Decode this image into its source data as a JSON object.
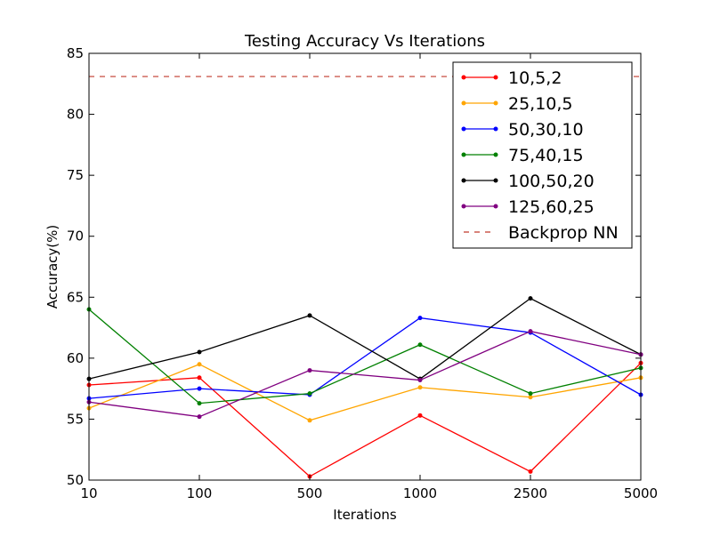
{
  "chart_data": {
    "type": "line",
    "title": "Testing Accuracy Vs Iterations",
    "xlabel": "Iterations",
    "ylabel": "Accuracy(%)",
    "categories": [
      "10",
      "100",
      "500",
      "1000",
      "2500",
      "5000"
    ],
    "ylim": [
      50,
      85
    ],
    "yticks": [
      50,
      55,
      60,
      65,
      70,
      75,
      80,
      85
    ],
    "grid": false,
    "legend_position": "top-right",
    "series": [
      {
        "name": "10,5,2",
        "color": "#ff0000",
        "values": [
          57.8,
          58.4,
          50.3,
          55.3,
          50.7,
          59.6
        ]
      },
      {
        "name": "25,10,5",
        "color": "#ffa500",
        "values": [
          55.9,
          59.5,
          54.9,
          57.6,
          56.8,
          58.4
        ]
      },
      {
        "name": "50,30,10",
        "color": "#0000ff",
        "values": [
          56.7,
          57.5,
          57.0,
          63.3,
          62.1,
          57.0
        ]
      },
      {
        "name": "75,40,15",
        "color": "#008000",
        "values": [
          64.0,
          56.3,
          57.1,
          61.1,
          57.1,
          59.2
        ]
      },
      {
        "name": "100,50,20",
        "color": "#000000",
        "values": [
          58.3,
          60.5,
          63.5,
          58.3,
          64.9,
          60.3
        ]
      },
      {
        "name": "125,60,25",
        "color": "#800080",
        "values": [
          56.4,
          55.2,
          59.0,
          58.2,
          62.2,
          60.3
        ]
      }
    ],
    "reference_lines": [
      {
        "name": "Backprop NN",
        "color": "#c0392b",
        "style": "dashed",
        "value": 83.1
      }
    ]
  }
}
